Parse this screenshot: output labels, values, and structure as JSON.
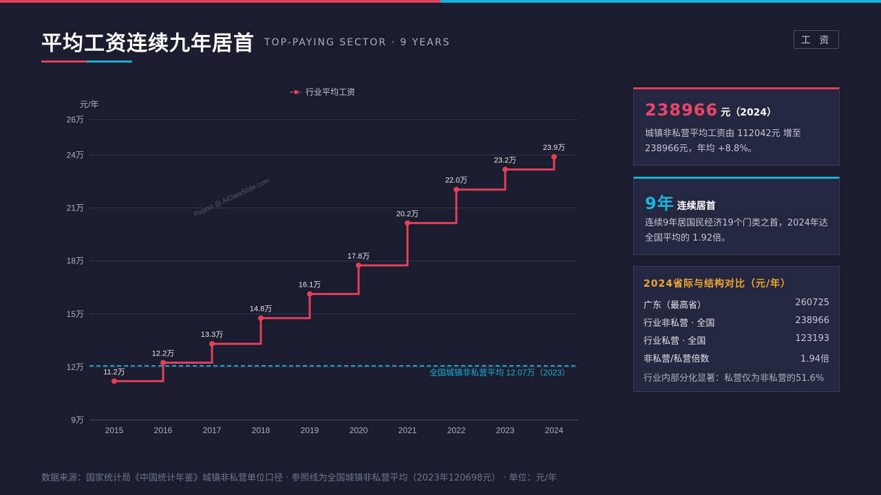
{
  "header": {
    "title": "平均工资连续九年居首",
    "subtitle": "TOP-PAYING SECTOR · 9 YEARS",
    "tag": "工 资",
    "colors": {
      "accent_red": "#e0405a",
      "accent_cyan": "#16b0d8",
      "background": "#1b1c2e"
    }
  },
  "chart_data": {
    "type": "line",
    "step": true,
    "ylabel": "元/年",
    "ylim": [
      90000,
      260000
    ],
    "yticks": [
      {
        "value": 90000,
        "label": "9万"
      },
      {
        "value": 120000,
        "label": "12万"
      },
      {
        "value": 150000,
        "label": "15万"
      },
      {
        "value": 180000,
        "label": "18万"
      },
      {
        "value": 210000,
        "label": "21万"
      },
      {
        "value": 240000,
        "label": "24万"
      },
      {
        "value": 260000,
        "label": "26万"
      }
    ],
    "categories": [
      "2015",
      "2016",
      "2017",
      "2018",
      "2019",
      "2020",
      "2021",
      "2022",
      "2023",
      "2024"
    ],
    "series": [
      {
        "name": "行业平均工资",
        "color": "#e0405a",
        "values": [
          112042,
          122478,
          133150,
          147678,
          161352,
          177544,
          201506,
          220418,
          231810,
          238966
        ],
        "labels": [
          "11.2万",
          "12.2万",
          "13.3万",
          "14.8万",
          "16.1万",
          "17.8万",
          "20.2万",
          "22.0万",
          "23.2万",
          "23.9万"
        ]
      }
    ],
    "reference_line": {
      "value": 120698,
      "label": "全国城镇非私营平均 12.07万（2023）",
      "color": "#16b0d8"
    },
    "legend_position": "top-center",
    "watermark": "Report @ AIDataSlide.com",
    "grid": true
  },
  "cards": {
    "c1": {
      "number": "238966",
      "unit": "元（2024）",
      "desc": "城镇非私营平均工资由 112042元 增至 238966元，年均 +8.8%。"
    },
    "c2": {
      "number": "9年",
      "unit": "连续居首",
      "desc": "连续9年居国民经济19个门类之首，2024年达全国平均的 1.92倍。"
    },
    "c3": {
      "heading": "2024省际与结构对比（元/年）",
      "rows": [
        {
          "k": "广东（最高省）",
          "v": "260725"
        },
        {
          "k": "行业非私营 · 全国",
          "v": "238966"
        },
        {
          "k": "行业私营 · 全国",
          "v": "123193"
        },
        {
          "k": "非私营/私营倍数",
          "v": "1.94倍"
        }
      ],
      "note": "行业内部分化显著：私营仅为非私营的51.6%"
    }
  },
  "footer": "数据来源：国家统计局《中国统计年鉴》城镇非私营单位口径 · 参照线为全国城镇非私营平均（2023年120698元） · 单位：元/年"
}
